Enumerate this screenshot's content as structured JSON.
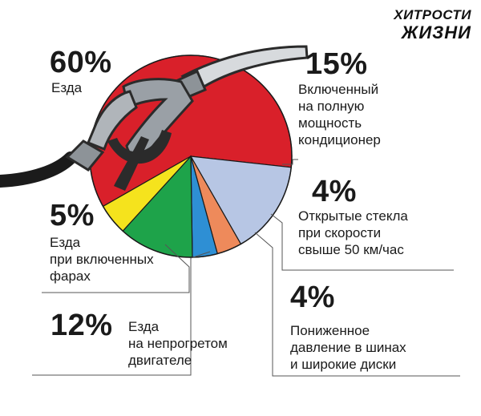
{
  "brand": {
    "line1": "ХИТРОСТИ",
    "line2": "ЖИЗНИ"
  },
  "chart_data": {
    "type": "pie",
    "slices": [
      {
        "value": 60,
        "label": "60%",
        "text": "Езда",
        "color": "#d9202a"
      },
      {
        "value": 15,
        "label": "15%",
        "text": "Включенный\nна полную\nмощность\nкондиционер",
        "color": "#b7c6e4"
      },
      {
        "value": 4,
        "label": "4%",
        "text": "Открытые стекла\nпри скорости\nсвыше 50 км/час",
        "color": "#ee8a5b"
      },
      {
        "value": 4,
        "label": "4%",
        "text": "Пониженное\nдавление в шинах\nи широкие диски",
        "color": "#2e8fd4"
      },
      {
        "value": 12,
        "label": "12%",
        "text": "Езда\nна непрогретом\nдвигателе",
        "color": "#1ea34a"
      },
      {
        "value": 5,
        "label": "5%",
        "text": "Езда\nпри включенных\nфарах",
        "color": "#f5e31d"
      }
    ]
  },
  "colors": {
    "nozzle_body": "#9aa0a6",
    "nozzle_dark": "#2b2b2b",
    "hose": "#1b1b1b",
    "leader": "#555555"
  }
}
